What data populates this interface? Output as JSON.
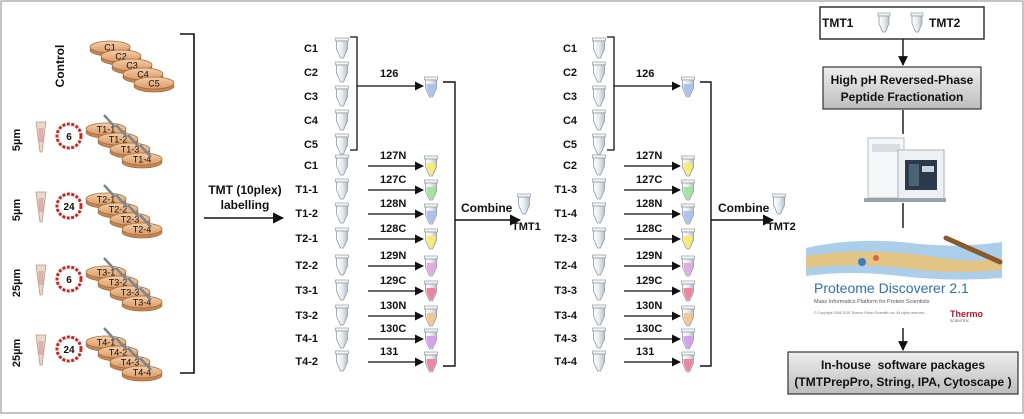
{
  "control_label": "Control",
  "control_dishes": [
    "C1",
    "C2",
    "C3",
    "C4",
    "C5"
  ],
  "groups": [
    {
      "pore_label": "5µm",
      "time": "6",
      "dishes": [
        "T1-1",
        "T1-2",
        "T1-3",
        "T1-4"
      ]
    },
    {
      "pore_label": "5µm",
      "time": "24",
      "dishes": [
        "T2-1",
        "T2-2",
        "T2-3",
        "T2-4"
      ]
    },
    {
      "pore_label": "25µm",
      "time": "6",
      "dishes": [
        "T3-1",
        "T3-2",
        "T3-3",
        "T3-4"
      ]
    },
    {
      "pore_label": "25µm",
      "time": "24",
      "dishes": [
        "T4-1",
        "T4-2",
        "T4-3",
        "T4-4"
      ]
    }
  ],
  "labelling_text": [
    "TMT (10plex)",
    "labelling"
  ],
  "set1": {
    "top_samples": [
      "C1",
      "C2",
      "C3",
      "C4",
      "C5"
    ],
    "top_channel": "126",
    "samples": [
      "C1",
      "T1-1",
      "T1-2",
      "T2-1",
      "T2-2",
      "T3-1",
      "T3-2",
      "T4-1",
      "T4-2"
    ],
    "channels": [
      "127N",
      "127C",
      "128N",
      "128C",
      "129N",
      "129C",
      "130N",
      "130C",
      "131"
    ],
    "combine_label": "Combine",
    "result_label": "TMT1"
  },
  "set2": {
    "top_samples": [
      "C1",
      "C2",
      "C3",
      "C4",
      "C5"
    ],
    "top_channel": "126",
    "samples": [
      "C2",
      "T1-3",
      "T1-4",
      "T2-3",
      "T2-4",
      "T3-3",
      "T3-4",
      "T4-3",
      "T4-4"
    ],
    "channels": [
      "127N",
      "127C",
      "128N",
      "128C",
      "129N",
      "129C",
      "130N",
      "130C",
      "131"
    ],
    "combine_label": "Combine",
    "result_label": "TMT2"
  },
  "tube_colors": [
    "#f2ee6a",
    "#9fe39f",
    "#a9bff0",
    "#f2ee6a",
    "#e3a6e3",
    "#ee7f9b",
    "#f3c58a",
    "#d59cef",
    "#ee7f9b"
  ],
  "workflow": {
    "tmt1": "TMT1",
    "tmt2": "TMT2",
    "fractionation": [
      "High pH Reversed-Phase",
      "Peptide Fractionation"
    ],
    "software_title": "Proteome Discoverer 2.1",
    "software_subtitle": "Mass Informatics Platform for Protein Scientists",
    "software_copyright": "© Copyright 2008-2015 Thermo Fisher Scientific Inc. All rights reserved.",
    "software_brand": [
      "Thermo",
      "SCIENTIFIC"
    ],
    "inhouse": [
      "In-house  software packages",
      "(TMTPrepPro, String, IPA, Cytoscape )"
    ]
  }
}
